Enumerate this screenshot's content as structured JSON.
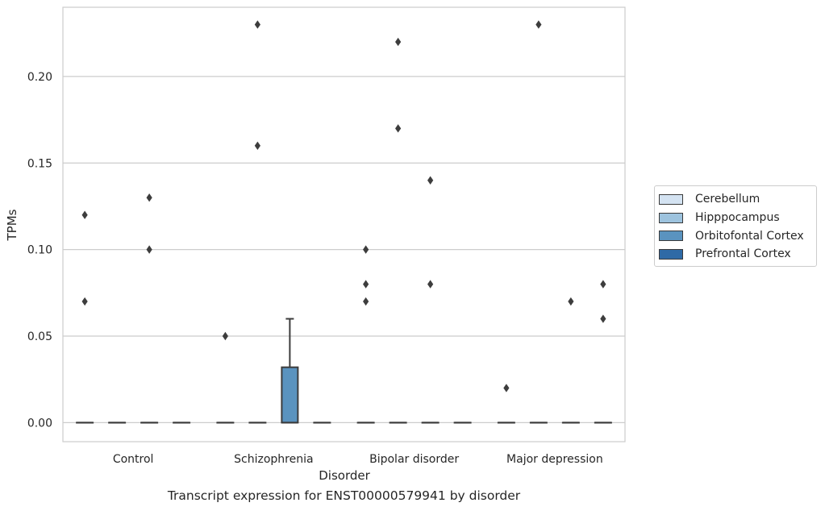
{
  "chart_data": {
    "type": "box",
    "title": "",
    "xlabel": "Disorder",
    "ylabel": "TPMs",
    "caption": "Transcript expression for ENST00000579941 by disorder",
    "categories": [
      "Control",
      "Schizophrenia",
      "Bipolar disorder",
      "Major depression"
    ],
    "ylim": [
      -0.011,
      0.24
    ],
    "yticks": [
      "0.00",
      "0.05",
      "0.10",
      "0.15",
      "0.20"
    ],
    "grid": "horizontal",
    "legend_position": "right",
    "series": [
      {
        "name": "Cerebellum",
        "color": "#d4e3f2",
        "boxes": [
          {
            "q1": 0,
            "median": 0,
            "q3": 0,
            "whisker_low": 0,
            "whisker_high": 0,
            "outliers": [
              0.12,
              0.07
            ]
          },
          {
            "q1": 0,
            "median": 0,
            "q3": 0,
            "whisker_low": 0,
            "whisker_high": 0,
            "outliers": [
              0.05
            ]
          },
          {
            "q1": 0,
            "median": 0,
            "q3": 0,
            "whisker_low": 0,
            "whisker_high": 0,
            "outliers": [
              0.1,
              0.08,
              0.07
            ]
          },
          {
            "q1": 0,
            "median": 0,
            "q3": 0,
            "whisker_low": 0,
            "whisker_high": 0,
            "outliers": [
              0.02
            ]
          }
        ]
      },
      {
        "name": "Hipppocampus",
        "color": "#9dc3de",
        "boxes": [
          {
            "q1": 0,
            "median": 0,
            "q3": 0,
            "whisker_low": 0,
            "whisker_high": 0,
            "outliers": []
          },
          {
            "q1": 0,
            "median": 0,
            "q3": 0,
            "whisker_low": 0,
            "whisker_high": 0,
            "outliers": [
              0.23,
              0.16
            ]
          },
          {
            "q1": 0,
            "median": 0,
            "q3": 0,
            "whisker_low": 0,
            "whisker_high": 0,
            "outliers": [
              0.22,
              0.17
            ]
          },
          {
            "q1": 0,
            "median": 0,
            "q3": 0,
            "whisker_low": 0,
            "whisker_high": 0,
            "outliers": [
              0.23
            ]
          }
        ]
      },
      {
        "name": "Orbitofontal Cortex",
        "color": "#5a93bf",
        "boxes": [
          {
            "q1": 0,
            "median": 0,
            "q3": 0,
            "whisker_low": 0,
            "whisker_high": 0,
            "outliers": [
              0.13,
              0.1
            ]
          },
          {
            "q1": 0,
            "median": 0,
            "q3": 0.032,
            "whisker_low": 0,
            "whisker_high": 0.06,
            "outliers": []
          },
          {
            "q1": 0,
            "median": 0,
            "q3": 0,
            "whisker_low": 0,
            "whisker_high": 0,
            "outliers": [
              0.14,
              0.08
            ]
          },
          {
            "q1": 0,
            "median": 0,
            "q3": 0,
            "whisker_low": 0,
            "whisker_high": 0,
            "outliers": [
              0.07
            ]
          }
        ]
      },
      {
        "name": "Prefrontal Cortex",
        "color": "#2f6aa6",
        "boxes": [
          {
            "q1": 0,
            "median": 0,
            "q3": 0,
            "whisker_low": 0,
            "whisker_high": 0,
            "outliers": []
          },
          {
            "q1": 0,
            "median": 0,
            "q3": 0,
            "whisker_low": 0,
            "whisker_high": 0,
            "outliers": []
          },
          {
            "q1": 0,
            "median": 0,
            "q3": 0,
            "whisker_low": 0,
            "whisker_high": 0,
            "outliers": []
          },
          {
            "q1": 0,
            "median": 0,
            "q3": 0,
            "whisker_low": 0,
            "whisker_high": 0,
            "outliers": [
              0.08,
              0.06
            ]
          }
        ]
      }
    ]
  }
}
